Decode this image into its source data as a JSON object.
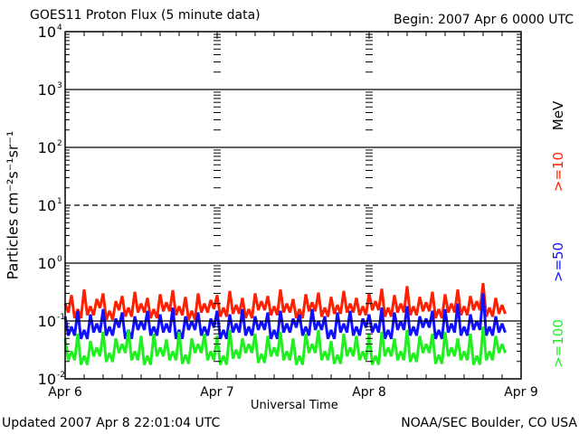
{
  "header": {
    "title": "GOES11 Proton Flux (5 minute data)",
    "begin": "Begin: 2007 Apr 6 0000 UTC"
  },
  "footer": {
    "updated": "Updated 2007 Apr  8 22:01:04 UTC",
    "source": "NOAA/SEC Boulder, CO USA"
  },
  "chart_data": {
    "type": "line",
    "title": "GOES11 Proton Flux (5 minute data)",
    "xlabel": "Universal Time",
    "ylabel": "Particles cm⁻²s⁻¹sr⁻¹",
    "yscale": "log",
    "ylim": [
      0.01,
      10000
    ],
    "yticks": [
      {
        "value": 10000,
        "base": "10",
        "exp": "4"
      },
      {
        "value": 1000,
        "base": "10",
        "exp": "3"
      },
      {
        "value": 100,
        "base": "10",
        "exp": "2"
      },
      {
        "value": 10,
        "base": "10",
        "exp": "1"
      },
      {
        "value": 1,
        "base": "10",
        "exp": "0"
      },
      {
        "value": 0.1,
        "base": "10",
        "exp": "-1"
      },
      {
        "value": 0.01,
        "base": "10",
        "exp": "-2"
      }
    ],
    "xlim_hours": [
      0,
      72
    ],
    "xticks": [
      {
        "hour": 0,
        "label": "Apr 6"
      },
      {
        "hour": 24,
        "label": "Apr 7"
      },
      {
        "hour": 48,
        "label": "Apr 8"
      },
      {
        "hour": 72,
        "label": "Apr 9"
      }
    ],
    "units_label": "MeV",
    "grid": true,
    "legend": "right",
    "series": [
      {
        "name": ">=10",
        "color": "#ff2000",
        "values": [
          0.2,
          0.28,
          0.16,
          0.35,
          0.18,
          0.24,
          0.3,
          0.15,
          0.22,
          0.27,
          0.17,
          0.32,
          0.2,
          0.25,
          0.16,
          0.29,
          0.21,
          0.34,
          0.18,
          0.26,
          0.15,
          0.3,
          0.2,
          0.23,
          0.28,
          0.17,
          0.33,
          0.19,
          0.25,
          0.16,
          0.3,
          0.22,
          0.27,
          0.18,
          0.35,
          0.2,
          0.24,
          0.16,
          0.29,
          0.21,
          0.31,
          0.17,
          0.26,
          0.19,
          0.33,
          0.2,
          0.25,
          0.18,
          0.3,
          0.22,
          0.36,
          0.17,
          0.28,
          0.2,
          0.4,
          0.18,
          0.26,
          0.21,
          0.32,
          0.16,
          0.29,
          0.2,
          0.35,
          0.18,
          0.27,
          0.22,
          0.45,
          0.17,
          0.25,
          0.19
        ]
      },
      {
        "name": ">=50",
        "color": "#1010ff",
        "values": [
          0.12,
          0.08,
          0.15,
          0.07,
          0.13,
          0.09,
          0.16,
          0.08,
          0.11,
          0.14,
          0.07,
          0.12,
          0.1,
          0.15,
          0.08,
          0.13,
          0.09,
          0.17,
          0.07,
          0.12,
          0.1,
          0.14,
          0.08,
          0.11,
          0.15,
          0.07,
          0.13,
          0.09,
          0.16,
          0.08,
          0.12,
          0.1,
          0.14,
          0.07,
          0.15,
          0.09,
          0.11,
          0.13,
          0.08,
          0.16,
          0.1,
          0.12,
          0.07,
          0.14,
          0.09,
          0.15,
          0.08,
          0.11,
          0.13,
          0.09,
          0.17,
          0.07,
          0.14,
          0.1,
          0.18,
          0.08,
          0.12,
          0.11,
          0.15,
          0.07,
          0.16,
          0.09,
          0.2,
          0.08,
          0.13,
          0.1,
          0.3,
          0.08,
          0.12,
          0.09
        ]
      },
      {
        "name": ">=100",
        "color": "#20f020",
        "values": [
          0.05,
          0.03,
          0.06,
          0.025,
          0.045,
          0.035,
          0.065,
          0.028,
          0.05,
          0.04,
          0.07,
          0.03,
          0.055,
          0.025,
          0.06,
          0.035,
          0.048,
          0.03,
          0.065,
          0.026,
          0.05,
          0.04,
          0.06,
          0.03,
          0.055,
          0.025,
          0.07,
          0.032,
          0.05,
          0.04,
          0.06,
          0.027,
          0.055,
          0.035,
          0.065,
          0.03,
          0.05,
          0.025,
          0.06,
          0.04,
          0.07,
          0.03,
          0.045,
          0.026,
          0.06,
          0.035,
          0.055,
          0.03,
          0.06,
          0.025,
          0.065,
          0.035,
          0.05,
          0.03,
          0.07,
          0.028,
          0.055,
          0.04,
          0.06,
          0.026,
          0.065,
          0.035,
          0.05,
          0.03,
          0.06,
          0.025,
          0.08,
          0.03,
          0.055,
          0.04
        ]
      }
    ]
  }
}
